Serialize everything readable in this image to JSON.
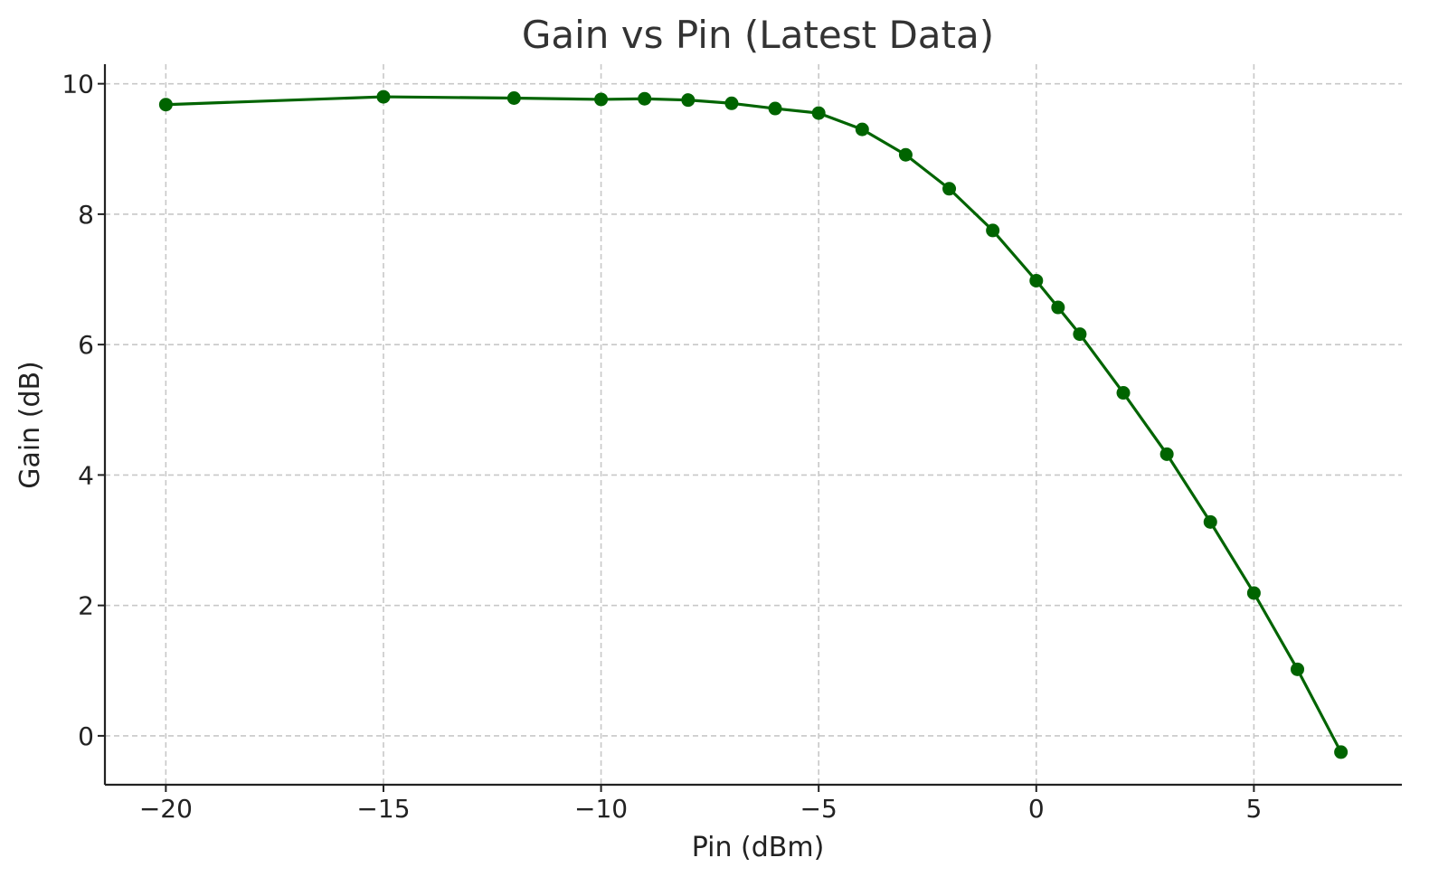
{
  "chart_data": {
    "type": "line",
    "title": "Gain vs Pin (Latest Data)",
    "xlabel": "Pin (dBm)",
    "ylabel": "Gain (dB)",
    "xlim": [
      -21.4,
      8.4
    ],
    "ylim": [
      -0.75,
      10.3
    ],
    "xticks": [
      -20,
      -15,
      -10,
      -5,
      0,
      5
    ],
    "xtick_labels": [
      "−20",
      "−15",
      "−10",
      "−5",
      "0",
      "5"
    ],
    "yticks": [
      0,
      2,
      4,
      6,
      8,
      10
    ],
    "ytick_labels": [
      "0",
      "2",
      "4",
      "6",
      "8",
      "10"
    ],
    "grid": true,
    "line_color": "#006400",
    "marker": "circle",
    "series": [
      {
        "x": [
          -20,
          -15,
          -12,
          -10,
          -9,
          -8,
          -7,
          -6,
          -5,
          -4,
          -3,
          -2,
          -1,
          0,
          0.5,
          1,
          2,
          3,
          4,
          5,
          6,
          7
        ],
        "y": [
          9.68,
          9.8,
          9.78,
          9.76,
          9.77,
          9.75,
          9.7,
          9.62,
          9.55,
          9.3,
          8.91,
          8.39,
          7.75,
          6.98,
          6.57,
          6.16,
          5.26,
          4.32,
          3.28,
          2.19,
          1.02,
          -0.25
        ]
      }
    ]
  }
}
